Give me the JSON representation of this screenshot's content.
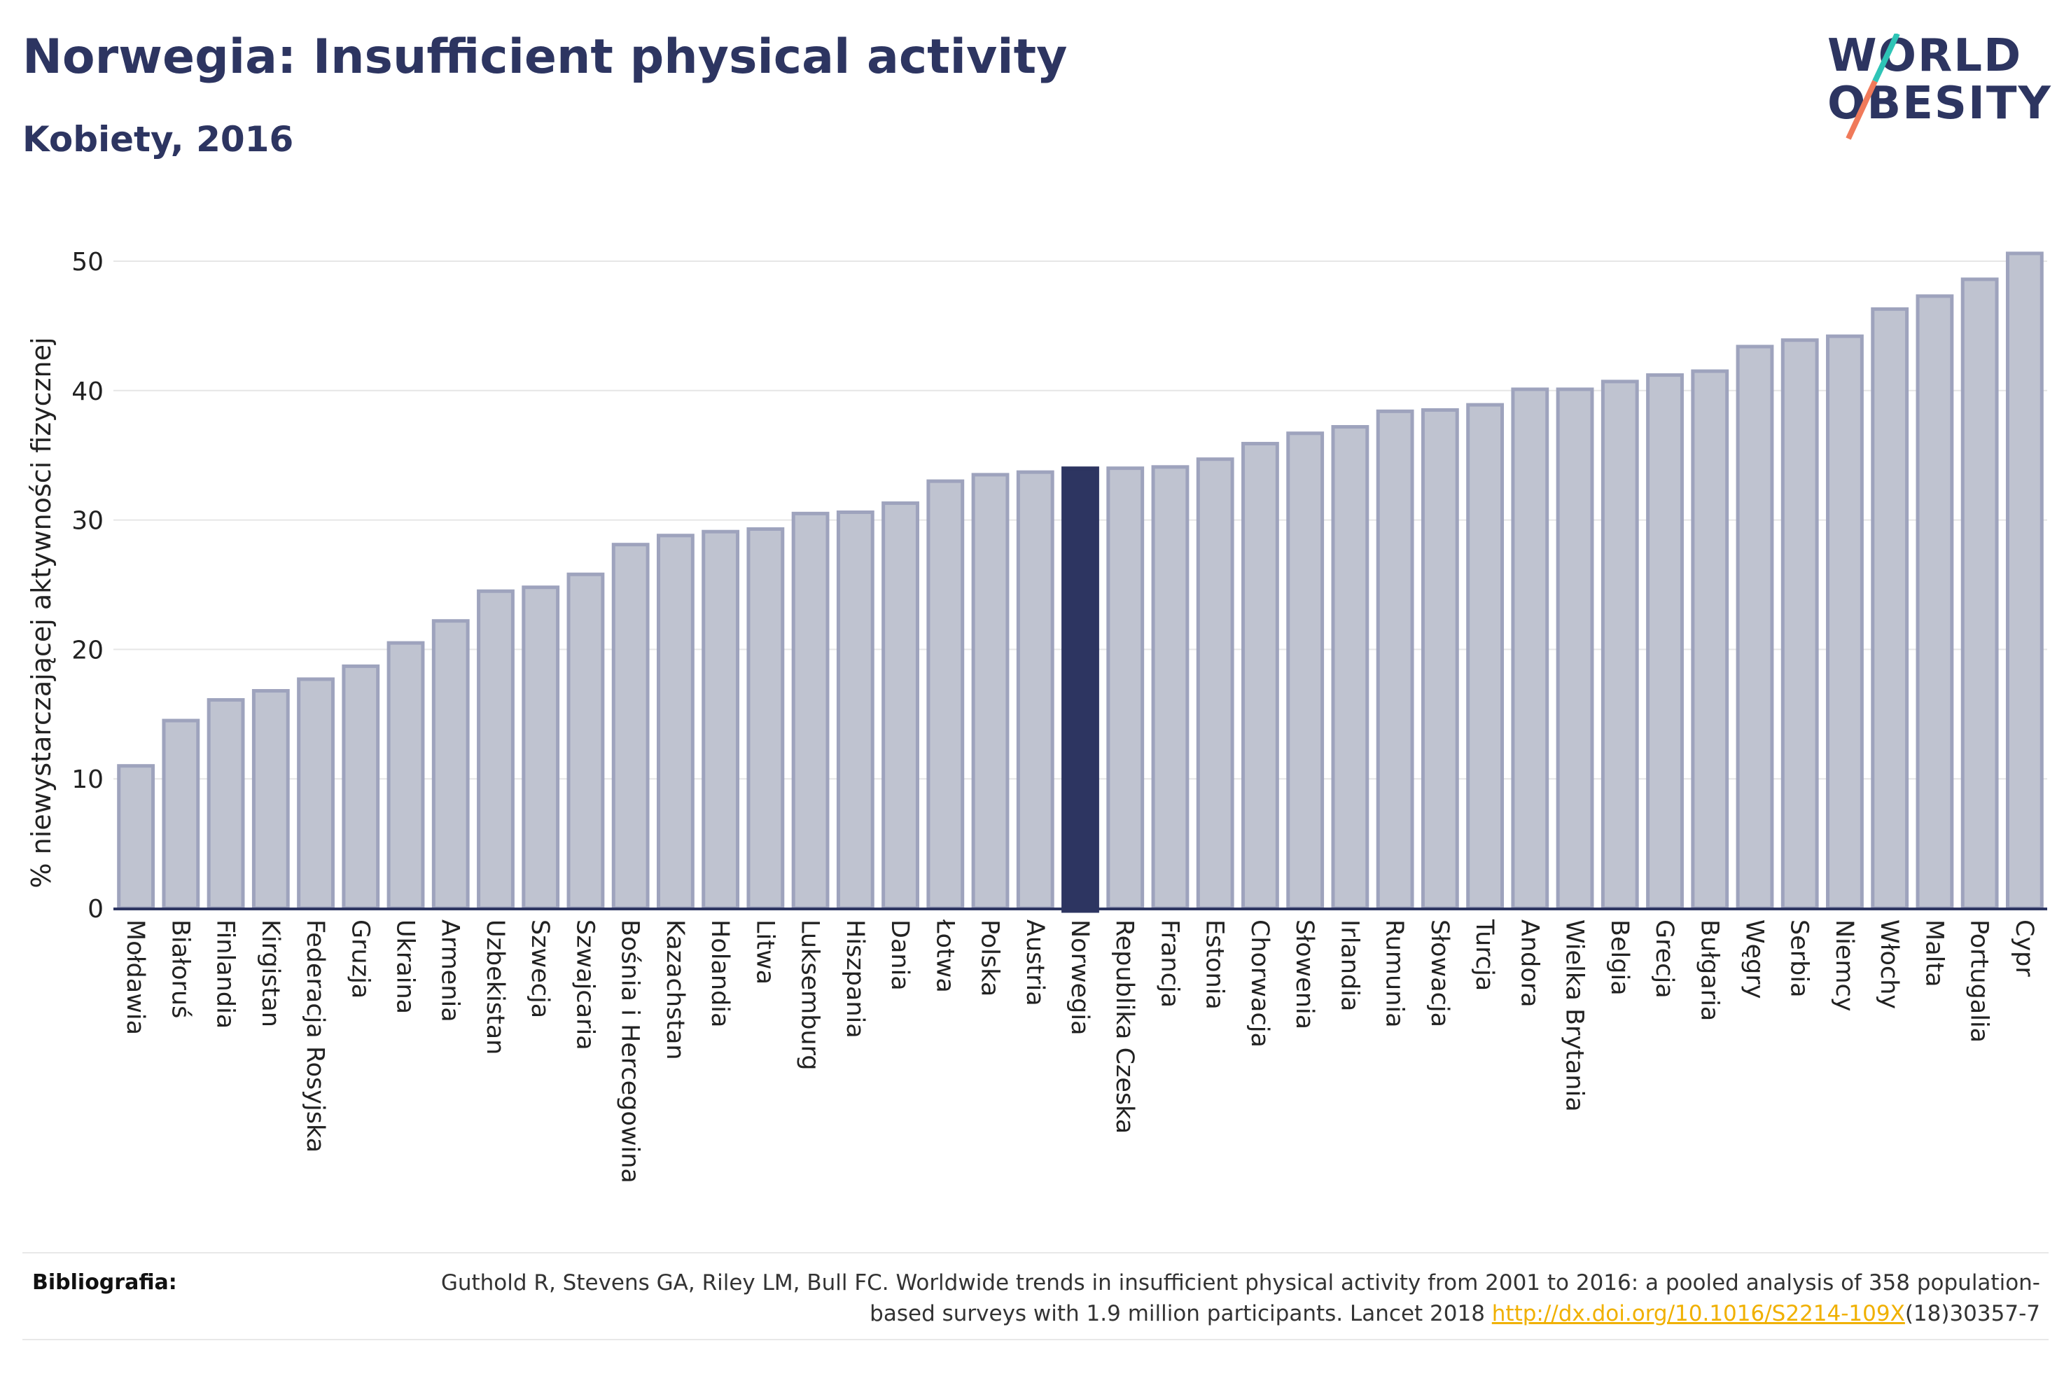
{
  "header": {
    "title": "Norwegia: Insufficient physical activity",
    "subtitle": "Kobiety, 2016"
  },
  "logo": {
    "line1": "WORLD",
    "line2": "OBESITY",
    "colors": {
      "text": "#2d3561",
      "slash_top": "#2ec4b6",
      "slash_bottom": "#f07a5a"
    }
  },
  "chart_data": {
    "type": "bar",
    "ylabel": "% niewystarczającej aktywności fizycznej",
    "xlabel": "",
    "ylim": [
      0,
      52
    ],
    "yticks": [
      0,
      10,
      20,
      30,
      40,
      50
    ],
    "grid": true,
    "highlight": "Norwegia",
    "colors": {
      "bar": "#bfc3d0",
      "bar_edge": "#9ea3bd",
      "highlight": "#2d3561",
      "axis": "#2d3561"
    },
    "categories": [
      "Mołdawia",
      "Białoruś",
      "Finlandia",
      "Kirgistan",
      "Federacja Rosyjska",
      "Gruzja",
      "Ukraina",
      "Armenia",
      "Uzbekistan",
      "Szwecja",
      "Szwajcaria",
      "Bośnia i Hercegowina",
      "Kazachstan",
      "Holandia",
      "Litwa",
      "Luksemburg",
      "Hiszpania",
      "Dania",
      "Łotwa",
      "Polska",
      "Austria",
      "Norwegia",
      "Republika Czeska",
      "Francja",
      "Estonia",
      "Chorwacja",
      "Słowenia",
      "Irlandia",
      "Rumunia",
      "Słowacja",
      "Turcja",
      "Andora",
      "Wielka Brytania",
      "Belgia",
      "Grecja",
      "Bułgaria",
      "Węgry",
      "Serbia",
      "Niemcy",
      "Włochy",
      "Malta",
      "Portugalia",
      "Cypr"
    ],
    "values": [
      11.0,
      14.5,
      16.1,
      16.8,
      17.7,
      18.7,
      20.5,
      22.2,
      24.5,
      24.8,
      25.8,
      28.1,
      28.8,
      29.1,
      29.3,
      30.5,
      30.6,
      31.3,
      33.0,
      33.5,
      33.7,
      34.0,
      34.0,
      34.1,
      34.7,
      35.9,
      36.7,
      37.2,
      38.4,
      38.5,
      38.9,
      40.1,
      40.1,
      40.7,
      41.2,
      41.5,
      43.4,
      43.9,
      44.2,
      46.3,
      47.3,
      48.6,
      50.6
    ]
  },
  "bibliography": {
    "label": "Bibliografia:",
    "text_before": "Guthold R, Stevens GA, Riley LM, Bull FC. Worldwide trends in insufficient physical activity from 2001 to 2016: a pooled analysis of 358 population-based surveys with 1.9 million participants. Lancet 2018 ",
    "link": "http://dx.doi.org/10.1016/S2214-109X",
    "text_after": "(18)30357-7"
  }
}
